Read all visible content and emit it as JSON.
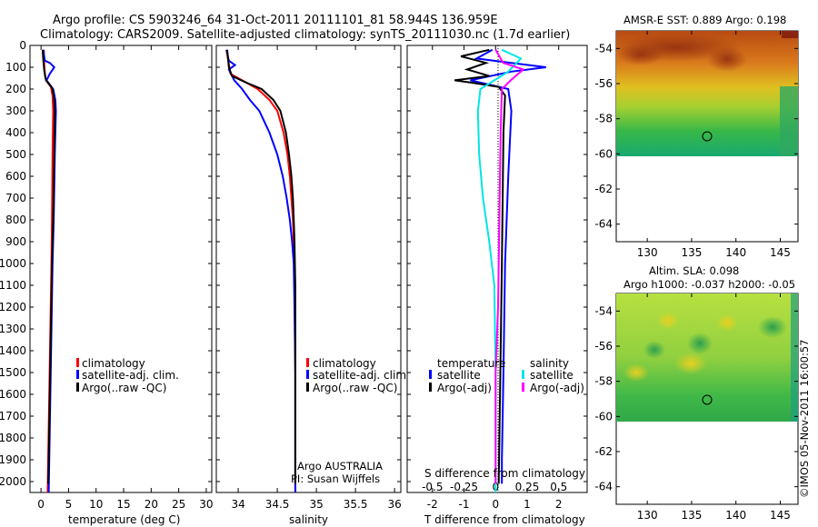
{
  "header": {
    "line1": "Argo profile: CS 5903246_64 31-Oct-2011 20111101_81 58.944S 136.959E",
    "line2": "Climatology: CARS2009. Satellite-adjusted climatology: synTS_20111030.nc (1.7d earlier)"
  },
  "footer": {
    "stamp": "©IMOS 05-Nov-2011 16:00:57"
  },
  "colors": {
    "climatology": "#ff0000",
    "satellite": "#0000ff",
    "argo": "#000000",
    "satellite_salinity": "#00e5e5",
    "argo_salinity_adj": "#ff00ff"
  },
  "chart_data": [
    {
      "id": "temperature",
      "type": "line",
      "xlabel": "temperature (deg C)",
      "ylabel": "",
      "xlim": [
        -2,
        31
      ],
      "ylim": [
        2050,
        0
      ],
      "xticks": [
        "0",
        "5",
        "10",
        "15",
        "20",
        "25",
        "30"
      ],
      "yticks": [
        "0",
        "100",
        "200",
        "300",
        "400",
        "500",
        "600",
        "700",
        "800",
        "900",
        "1000",
        "1100",
        "1200",
        "1300",
        "1400",
        "1500",
        "1600",
        "1700",
        "1800",
        "1900",
        "2000"
      ],
      "legend": [
        "climatology",
        "satellite-adj. clim.",
        "Argo(..raw -QC)"
      ],
      "series": [
        {
          "name": "climatology",
          "color": "#ff0000",
          "points": [
            [
              0.5,
              20
            ],
            [
              0.6,
              100
            ],
            [
              0.8,
              150
            ],
            [
              1.2,
              170
            ],
            [
              1.8,
              190
            ],
            [
              2.1,
              230
            ],
            [
              2.2,
              300
            ],
            [
              2.1,
              500
            ],
            [
              2.0,
              800
            ],
            [
              1.9,
              1000
            ],
            [
              1.7,
              1300
            ],
            [
              1.5,
              1600
            ],
            [
              1.3,
              1900
            ],
            [
              1.2,
              2050
            ]
          ]
        },
        {
          "name": "satellite-adj. clim.",
          "color": "#0000ff",
          "points": [
            [
              0.4,
              20
            ],
            [
              0.7,
              70
            ],
            [
              1.6,
              80
            ],
            [
              2.4,
              100
            ],
            [
              1.6,
              130
            ],
            [
              1.0,
              160
            ],
            [
              2.2,
              200
            ],
            [
              2.6,
              250
            ],
            [
              2.7,
              300
            ],
            [
              2.5,
              500
            ],
            [
              2.3,
              800
            ],
            [
              2.1,
              1000
            ],
            [
              1.9,
              1300
            ],
            [
              1.7,
              1600
            ],
            [
              1.5,
              1900
            ],
            [
              1.4,
              2050
            ]
          ]
        },
        {
          "name": "Argo(..raw -QC)",
          "color": "#000000",
          "points": [
            [
              0.3,
              20
            ],
            [
              0.4,
              60
            ],
            [
              0.6,
              120
            ],
            [
              0.9,
              160
            ],
            [
              1.6,
              180
            ],
            [
              2.1,
              200
            ],
            [
              2.4,
              250
            ],
            [
              2.5,
              300
            ],
            [
              2.4,
              500
            ],
            [
              2.2,
              800
            ],
            [
              2.0,
              1000
            ],
            [
              1.8,
              1300
            ],
            [
              1.6,
              1600
            ],
            [
              1.4,
              1900
            ],
            [
              1.3,
              2010
            ]
          ]
        }
      ]
    },
    {
      "id": "salinity",
      "type": "line",
      "xlabel": "salinity",
      "ylabel": "",
      "xlim": [
        33.72,
        36.08
      ],
      "ylim": [
        2050,
        0
      ],
      "xticks": [
        "34",
        "34.5",
        "35",
        "35.5",
        "36"
      ],
      "legend": [
        "climatology",
        "satellite-adj. clim.",
        "Argo(..raw -QC)"
      ],
      "annotations": [
        "Argo AUSTRALIA",
        "PI: Susan Wijffels"
      ],
      "series": [
        {
          "name": "climatology",
          "color": "#ff0000",
          "points": [
            [
              33.85,
              20
            ],
            [
              33.9,
              130
            ],
            [
              34.05,
              160
            ],
            [
              34.25,
              200
            ],
            [
              34.4,
              250
            ],
            [
              34.5,
              300
            ],
            [
              34.58,
              400
            ],
            [
              34.63,
              500
            ],
            [
              34.66,
              600
            ],
            [
              34.68,
              700
            ],
            [
              34.7,
              800
            ],
            [
              34.71,
              900
            ],
            [
              34.72,
              1000
            ],
            [
              34.73,
              1500
            ],
            [
              34.73,
              2050
            ]
          ]
        },
        {
          "name": "satellite-adj. clim.",
          "color": "#0000ff",
          "points": [
            [
              33.85,
              20
            ],
            [
              33.88,
              70
            ],
            [
              33.96,
              90
            ],
            [
              33.88,
              110
            ],
            [
              33.95,
              160
            ],
            [
              34.05,
              200
            ],
            [
              34.15,
              250
            ],
            [
              34.27,
              300
            ],
            [
              34.4,
              400
            ],
            [
              34.5,
              500
            ],
            [
              34.57,
              600
            ],
            [
              34.62,
              700
            ],
            [
              34.66,
              800
            ],
            [
              34.69,
              900
            ],
            [
              34.71,
              1000
            ],
            [
              34.72,
              1200
            ],
            [
              34.73,
              1500
            ],
            [
              34.73,
              2050
            ]
          ]
        },
        {
          "name": "Argo(..raw -QC)",
          "color": "#000000",
          "points": [
            [
              33.86,
              20
            ],
            [
              33.88,
              100
            ],
            [
              33.92,
              140
            ],
            [
              34.1,
              170
            ],
            [
              34.3,
              200
            ],
            [
              34.45,
              250
            ],
            [
              34.54,
              300
            ],
            [
              34.61,
              400
            ],
            [
              34.65,
              500
            ],
            [
              34.68,
              600
            ],
            [
              34.7,
              700
            ],
            [
              34.71,
              800
            ],
            [
              34.72,
              900
            ],
            [
              34.73,
              1100
            ],
            [
              34.73,
              2010
            ]
          ]
        }
      ]
    },
    {
      "id": "difference",
      "type": "line",
      "xlabel": "T difference from climatology",
      "top_label": "S difference from climatology",
      "xlim": [
        -2.8,
        2.9
      ],
      "ylim": [
        2050,
        0
      ],
      "xticks": [
        "-2",
        "-1",
        "0",
        "1",
        "2"
      ],
      "top_xticks": [
        "-0.5",
        "-0.25",
        "0",
        "0.25",
        "0.5"
      ],
      "legend_groups": [
        {
          "title": "temperature",
          "items": [
            "satellite",
            "Argo(-adj)"
          ]
        },
        {
          "title": "salinity",
          "items": [
            "satellite",
            "Argo(-adj)"
          ]
        }
      ],
      "series": [
        {
          "name": "temperature satellite",
          "color": "#0000ff",
          "points": [
            [
              -0.1,
              20
            ],
            [
              -0.6,
              60
            ],
            [
              0.5,
              80
            ],
            [
              1.6,
              100
            ],
            [
              0.5,
              120
            ],
            [
              -0.8,
              160
            ],
            [
              0.4,
              200
            ],
            [
              0.5,
              300
            ],
            [
              0.4,
              600
            ],
            [
              0.3,
              1000
            ],
            [
              0.25,
              1500
            ],
            [
              0.2,
              1900
            ],
            [
              0.2,
              2010
            ]
          ]
        },
        {
          "name": "temperature Argo(-adj)",
          "color": "#000000",
          "points": [
            [
              -0.2,
              20
            ],
            [
              -1.1,
              50
            ],
            [
              -0.3,
              80
            ],
            [
              -0.9,
              110
            ],
            [
              -0.2,
              140
            ],
            [
              -1.3,
              160
            ],
            [
              -0.8,
              170
            ],
            [
              0.1,
              190
            ],
            [
              0.3,
              230
            ],
            [
              0.25,
              400
            ],
            [
              0.2,
              1000
            ],
            [
              0.15,
              1500
            ],
            [
              0.1,
              2010
            ]
          ]
        },
        {
          "name": "salinity satellite",
          "color": "#00e5e5",
          "points": [
            [
              0.05,
              20
            ],
            [
              0.2,
              60
            ],
            [
              0.1,
              120
            ],
            [
              -0.12,
              200
            ],
            [
              -0.14,
              300
            ],
            [
              -0.13,
              500
            ],
            [
              -0.1,
              700
            ],
            [
              -0.05,
              900
            ],
            [
              -0.01,
              1100
            ],
            [
              0.0,
              1500
            ],
            [
              0.0,
              2050
            ]
          ]
        },
        {
          "name": "salinity Argo(-adj)",
          "color": "#ff00ff",
          "points": [
            [
              0.0,
              20
            ],
            [
              0.06,
              80
            ],
            [
              0.22,
              110
            ],
            [
              0.12,
              160
            ],
            [
              0.05,
              200
            ],
            [
              0.04,
              400
            ],
            [
              0.03,
              800
            ],
            [
              0.02,
              1200
            ],
            [
              0.0,
              1500
            ],
            [
              0.0,
              2010
            ]
          ]
        }
      ]
    },
    {
      "id": "sst_map",
      "type": "heatmap",
      "title": "AMSR-E SST: 0.889 Argo: 0.198",
      "xticks": [
        "130",
        "135",
        "140",
        "145"
      ],
      "yticks": [
        "-54",
        "-56",
        "-58",
        "-60",
        "-62",
        "-64"
      ],
      "xlim": [
        126.5,
        147
      ],
      "ylim": [
        -65,
        -53
      ],
      "marker": {
        "lon": 136.96,
        "lat": -58.94
      }
    },
    {
      "id": "sla_map",
      "type": "heatmap",
      "title": "Altim. SLA: 0.098",
      "subtitle": "Argo h1000: -0.037 h2000: -0.05",
      "xticks": [
        "130",
        "135",
        "140",
        "145"
      ],
      "yticks": [
        "-54",
        "-56",
        "-58",
        "-60",
        "-62",
        "-64"
      ],
      "xlim": [
        126.5,
        147
      ],
      "ylim": [
        -65,
        -53
      ],
      "marker": {
        "lon": 136.96,
        "lat": -58.94
      }
    }
  ]
}
